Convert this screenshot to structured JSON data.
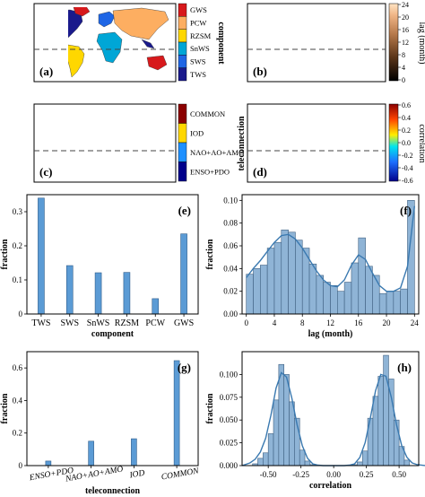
{
  "panels": {
    "a": {
      "letter": "(a)",
      "legend_title": "component",
      "legend_items": [
        {
          "label": "GWS",
          "color": "#d7191c"
        },
        {
          "label": "PCW",
          "color": "#fdae61"
        },
        {
          "label": "RZSM",
          "color": "#ffd700"
        },
        {
          "label": "SnWS",
          "color": "#00a6d6"
        },
        {
          "label": "SWS",
          "color": "#1f66e5"
        },
        {
          "label": "TWS",
          "color": "#1a1a8c"
        }
      ]
    },
    "b": {
      "letter": "(b)",
      "colorbar_label": "lag (month)",
      "colorbar_ticks": [
        "24",
        "20",
        "16",
        "12",
        "8",
        "4",
        "0"
      ],
      "colorbar_range": [
        0,
        24
      ]
    },
    "c": {
      "letter": "(c)",
      "legend_title": "teleconnection",
      "legend_items": [
        {
          "label": "COMMON",
          "color": "#8b0000"
        },
        {
          "label": "IOD",
          "color": "#ffd700"
        },
        {
          "label": "NAO+AO+AMO",
          "color": "#1e90ff"
        },
        {
          "label": "ENSO+PDO",
          "color": "#00008b"
        }
      ]
    },
    "d": {
      "letter": "(d)",
      "colorbar_label": "correlation",
      "colorbar_ticks": [
        "0.6",
        "0.4",
        "0.2",
        "0.0",
        "-0.2",
        "-0.4",
        "-0.6"
      ],
      "colorbar_range": [
        -0.6,
        0.6
      ]
    }
  },
  "chart_data": [
    {
      "id": "e",
      "letter": "(e)",
      "type": "bar",
      "categories": [
        "TWS",
        "SWS",
        "SnWS",
        "RZSM",
        "PCW",
        "GWS"
      ],
      "values": [
        0.34,
        0.142,
        0.121,
        0.122,
        0.045,
        0.235
      ],
      "xlabel": "component",
      "ylabel": "fraction",
      "ylim": [
        0,
        0.35
      ],
      "yticks": [
        0,
        0.1,
        0.2,
        0.3
      ],
      "ytick_labels": [
        "0",
        "0.1",
        "0.2",
        "0.3"
      ],
      "bar_color": "#5b9bd5"
    },
    {
      "id": "f",
      "letter": "(f)",
      "type": "bar",
      "bin_edges": [
        0,
        1,
        2,
        3,
        4,
        5,
        6,
        7,
        8,
        9,
        10,
        11,
        12,
        13,
        14,
        15,
        16,
        17,
        18,
        19,
        20,
        21,
        22,
        23,
        24
      ],
      "values": [
        0.035,
        0.04,
        0.043,
        0.058,
        0.063,
        0.074,
        0.072,
        0.065,
        0.058,
        0.044,
        0.034,
        0.028,
        0.025,
        0.02,
        0.028,
        0.045,
        0.067,
        0.042,
        0.034,
        0.018,
        0.02,
        0.02,
        0.022,
        0.1
      ],
      "kde_x": [
        0,
        1,
        2,
        3,
        4,
        5,
        6,
        7,
        8,
        9,
        10,
        11,
        12,
        13,
        14,
        15,
        16,
        17,
        18,
        19,
        20,
        21,
        22,
        23,
        24
      ],
      "kde_y": [
        0.032,
        0.04,
        0.047,
        0.055,
        0.063,
        0.069,
        0.07,
        0.066,
        0.058,
        0.048,
        0.038,
        0.03,
        0.025,
        0.024,
        0.03,
        0.043,
        0.052,
        0.048,
        0.036,
        0.025,
        0.02,
        0.02,
        0.023,
        0.042,
        0.095
      ],
      "xlabel": "lag (month)",
      "ylabel": "fraction",
      "xlim": [
        -0.6,
        24.6
      ],
      "ylim": [
        0,
        0.105
      ],
      "xticks": [
        0,
        4,
        8,
        12,
        16,
        20,
        24
      ],
      "xtick_labels": [
        "0",
        "4",
        "8",
        "12",
        "16",
        "20",
        "24"
      ],
      "yticks": [
        0,
        0.02,
        0.04,
        0.06,
        0.08,
        0.1
      ],
      "ytick_labels": [
        "0.00",
        "0.02",
        "0.04",
        "0.06",
        "0.08",
        "0.10"
      ],
      "bar_color": "#8fb4d6",
      "line_color": "#3a79b0"
    },
    {
      "id": "g",
      "letter": "(g)",
      "type": "bar",
      "categories": [
        "ENSO+PDO",
        "NAO+AO+AMO",
        "IOD",
        "COMMON"
      ],
      "values": [
        0.028,
        0.15,
        0.165,
        0.645
      ],
      "xlabel": "teleconnection",
      "ylabel": "fraction",
      "ylim": [
        0,
        0.7
      ],
      "yticks": [
        0,
        0.2,
        0.4,
        0.6
      ],
      "ytick_labels": [
        "0",
        "0.2",
        "0.4",
        "0.6"
      ],
      "bar_color": "#5b9bd5"
    },
    {
      "id": "h",
      "letter": "(h)",
      "type": "bar",
      "bin_edges": [
        -0.62,
        -0.58,
        -0.54,
        -0.5,
        -0.46,
        -0.42,
        -0.38,
        -0.34,
        -0.3,
        -0.26,
        -0.22,
        -0.18,
        -0.14,
        0.14,
        0.18,
        0.22,
        0.26,
        0.3,
        0.34,
        0.38,
        0.42,
        0.46,
        0.5,
        0.54,
        0.58
      ],
      "values": [
        0.002,
        0.008,
        0.014,
        0.035,
        0.072,
        0.111,
        0.1,
        0.07,
        0.052,
        0.017,
        0.005,
        0.001,
        0,
        0.001,
        0.004,
        0.016,
        0.052,
        0.076,
        0.098,
        0.121,
        0.095,
        0.05,
        0.021,
        0.006
      ],
      "kde_x": [
        -0.7,
        -0.64,
        -0.6,
        -0.56,
        -0.52,
        -0.48,
        -0.44,
        -0.4,
        -0.36,
        -0.32,
        -0.28,
        -0.24,
        -0.2,
        -0.16,
        -0.12,
        -0.08,
        0,
        0.08,
        0.12,
        0.16,
        0.2,
        0.24,
        0.28,
        0.32,
        0.36,
        0.4,
        0.44,
        0.48,
        0.52,
        0.56,
        0.6,
        0.64,
        0.7
      ],
      "kde_y": [
        0,
        0.003,
        0.007,
        0.015,
        0.03,
        0.055,
        0.085,
        0.102,
        0.097,
        0.074,
        0.045,
        0.022,
        0.008,
        0.002,
        0.0005,
        0,
        0,
        0,
        0.0005,
        0.002,
        0.009,
        0.025,
        0.052,
        0.082,
        0.1,
        0.098,
        0.075,
        0.045,
        0.022,
        0.009,
        0.003,
        0.001,
        0
      ],
      "xlabel": "correlation",
      "ylabel": "fraction",
      "xlim": [
        -0.7,
        0.65
      ],
      "ylim": [
        0,
        0.125
      ],
      "xticks": [
        -0.5,
        -0.25,
        0,
        0.25,
        0.5
      ],
      "xtick_labels": [
        "-0.50",
        "-0.25",
        "0.00",
        "0.25",
        "0.50"
      ],
      "yticks": [
        0,
        0.025,
        0.05,
        0.075,
        0.1
      ],
      "ytick_labels": [
        "0.000",
        "0.025",
        "0.050",
        "0.075",
        "0.100"
      ],
      "bar_color": "#8fb4d6",
      "line_color": "#3a79b0"
    }
  ]
}
